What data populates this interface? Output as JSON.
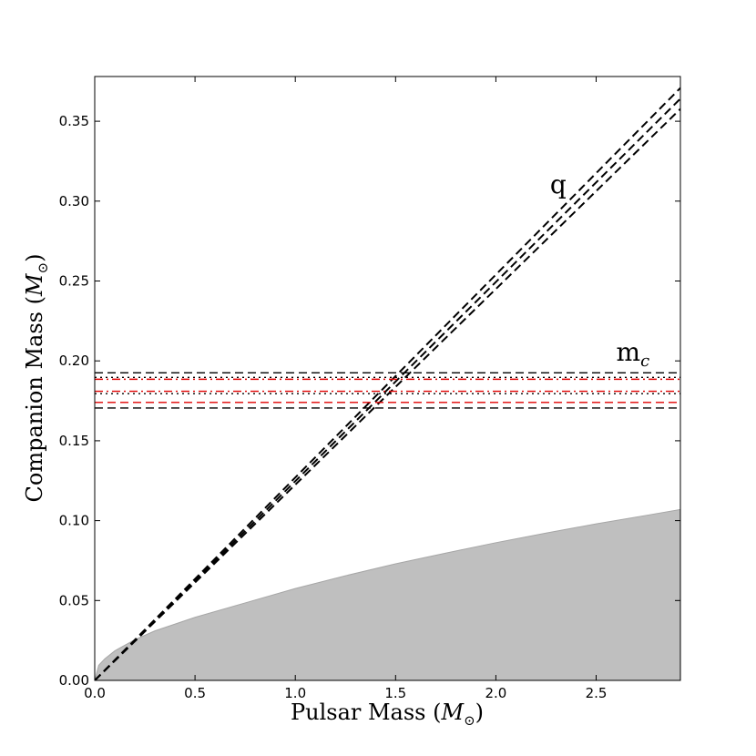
{
  "chart_data": {
    "type": "line",
    "xlabel": {
      "main": "Pulsar Mass (",
      "symbol": "M",
      "sub": "⊙",
      "close": ")"
    },
    "ylabel": {
      "main": "Companion Mass (",
      "symbol": "M",
      "sub": "⊙",
      "close": ")"
    },
    "xlim": [
      0.0,
      2.92
    ],
    "ylim": [
      0.0,
      0.378
    ],
    "x_ticks": [
      0.0,
      0.5,
      1.0,
      1.5,
      2.0,
      2.5
    ],
    "x_tick_labels": [
      "0.0",
      "0.5",
      "1.0",
      "1.5",
      "2.0",
      "2.5"
    ],
    "y_ticks": [
      0.0,
      0.05,
      0.1,
      0.15,
      0.2,
      0.25,
      0.3,
      0.35
    ],
    "y_tick_labels": [
      "0.00",
      "0.05",
      "0.10",
      "0.15",
      "0.20",
      "0.25",
      "0.30",
      "0.35"
    ],
    "grid": false,
    "excluded_region": {
      "color": "#bfbfbf",
      "edge_color": "#a6a6a6",
      "x": [
        0.0,
        0.02,
        0.05,
        0.1,
        0.2,
        0.3,
        0.5,
        0.75,
        1.0,
        1.25,
        1.5,
        1.75,
        2.0,
        2.25,
        2.5,
        2.75,
        2.92
      ],
      "y": [
        0.0,
        0.0095,
        0.0135,
        0.0185,
        0.0255,
        0.031,
        0.0395,
        0.0485,
        0.0575,
        0.0655,
        0.073,
        0.0797,
        0.0862,
        0.0922,
        0.098,
        0.1033,
        0.107
      ]
    },
    "q_lines": {
      "color": "#000000",
      "style": "dashed",
      "slopes": [
        0.1225,
        0.1247,
        0.127
      ]
    },
    "mc_lines": [
      {
        "value": 0.1925,
        "color": "#000000",
        "style": "dashed"
      },
      {
        "value": 0.1897,
        "color": "#000000",
        "style": "dotted"
      },
      {
        "value": 0.1885,
        "color": "#e00000",
        "style": "dashdot"
      },
      {
        "value": 0.181,
        "color": "#e00000",
        "style": "dashdot"
      },
      {
        "value": 0.1795,
        "color": "#000000",
        "style": "dotted"
      },
      {
        "value": 0.174,
        "color": "#e00000",
        "style": "dashed"
      },
      {
        "value": 0.1705,
        "color": "#000000",
        "style": "dashed"
      }
    ],
    "annotations": [
      {
        "id": "q",
        "text": "q",
        "x": 2.27,
        "y": 0.305
      },
      {
        "id": "mc",
        "text": "m",
        "sub": "c",
        "x": 2.6,
        "y": 0.2
      }
    ]
  }
}
